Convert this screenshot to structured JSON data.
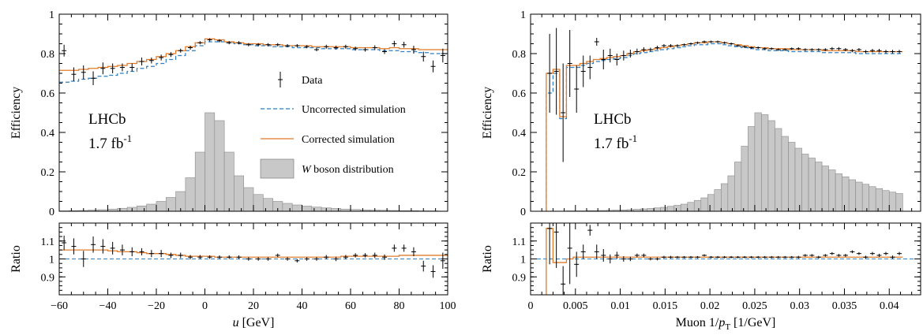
{
  "colors": {
    "data": "#000000",
    "uncorrected": "#2f7fc1",
    "corrected": "#e07b2a",
    "hist_fill": "#c8c8c8",
    "hist_edge": "#8a8a8a",
    "unity_line": "#2f7fc1"
  },
  "legend": {
    "data": "Data",
    "uncorrected": "Uncorrected simulation",
    "corrected": "Corrected simulation",
    "hist_italic": "W",
    "hist_rest": " boson distribution"
  },
  "chart_data": [
    {
      "type": "line",
      "panel": "left",
      "ylabel_top": "Efficiency",
      "ylabel_bottom": "Ratio",
      "xlabel_main": "u",
      "xlabel_unit": " [GeV]",
      "xlim": [
        -60,
        100
      ],
      "ylim_top": [
        0,
        1
      ],
      "ylim_bottom": [
        0.8,
        1.2
      ],
      "xticks": [
        -60,
        -40,
        -20,
        0,
        20,
        40,
        60,
        80,
        100
      ],
      "xtick_labels": [
        "−60",
        "−40",
        "−20",
        "0",
        "20",
        "40",
        "60",
        "80",
        "100"
      ],
      "yticks_top": [
        0,
        0.2,
        0.4,
        0.6,
        0.8,
        1
      ],
      "ytick_labels_top": [
        "0",
        "0.2",
        "0.4",
        "0.6",
        "0.8",
        "1"
      ],
      "yticks_bottom": [
        0.9,
        1,
        1.1
      ],
      "ytick_labels_bottom": [
        "0.9",
        "1",
        "1.1"
      ],
      "annotation_experiment": "LHCb",
      "annotation_lumi": "1.7 fb",
      "annotation_lumi_sup": "-1",
      "bin_edges": [
        -60,
        -56,
        -52,
        -48,
        -44,
        -40,
        -36,
        -32,
        -28,
        -24,
        -20,
        -16,
        -12,
        -8,
        -4,
        0,
        4,
        8,
        12,
        16,
        20,
        24,
        28,
        32,
        36,
        40,
        44,
        48,
        52,
        56,
        60,
        64,
        68,
        72,
        76,
        80,
        84,
        88,
        92,
        96,
        100
      ],
      "data_values": [
        0.815,
        0.695,
        0.705,
        0.675,
        0.725,
        0.725,
        0.73,
        0.73,
        0.76,
        0.765,
        0.78,
        0.795,
        0.815,
        0.83,
        0.855,
        0.87,
        0.865,
        0.855,
        0.855,
        0.845,
        0.845,
        0.845,
        0.845,
        0.84,
        0.84,
        0.835,
        0.82,
        0.835,
        0.83,
        0.835,
        0.825,
        0.82,
        0.83,
        0.81,
        0.85,
        0.845,
        0.82,
        0.785,
        0.735,
        0.79
      ],
      "data_errors": [
        0.03,
        0.035,
        0.035,
        0.035,
        0.03,
        0.025,
        0.02,
        0.02,
        0.02,
        0.015,
        0.015,
        0.012,
        0.01,
        0.01,
        0.008,
        0.008,
        0.008,
        0.008,
        0.008,
        0.008,
        0.008,
        0.008,
        0.008,
        0.008,
        0.008,
        0.008,
        0.008,
        0.01,
        0.01,
        0.01,
        0.01,
        0.01,
        0.012,
        0.012,
        0.015,
        0.015,
        0.02,
        0.025,
        0.03,
        0.035
      ],
      "uncorrected_values": [
        0.655,
        0.66,
        0.67,
        0.675,
        0.685,
        0.69,
        0.7,
        0.71,
        0.725,
        0.735,
        0.75,
        0.77,
        0.79,
        0.815,
        0.84,
        0.86,
        0.86,
        0.855,
        0.85,
        0.845,
        0.84,
        0.84,
        0.835,
        0.835,
        0.83,
        0.83,
        0.83,
        0.825,
        0.825,
        0.825,
        0.82,
        0.82,
        0.82,
        0.815,
        0.815,
        0.81,
        0.81,
        0.805,
        0.8,
        0.8
      ],
      "corrected_values": [
        0.715,
        0.715,
        0.72,
        0.725,
        0.73,
        0.735,
        0.74,
        0.75,
        0.76,
        0.77,
        0.785,
        0.8,
        0.815,
        0.835,
        0.855,
        0.875,
        0.87,
        0.86,
        0.855,
        0.85,
        0.85,
        0.845,
        0.845,
        0.84,
        0.84,
        0.84,
        0.835,
        0.835,
        0.835,
        0.835,
        0.83,
        0.83,
        0.83,
        0.825,
        0.83,
        0.825,
        0.825,
        0.82,
        0.82,
        0.82
      ],
      "hist_values": [
        0.002,
        0.003,
        0.004,
        0.006,
        0.008,
        0.011,
        0.015,
        0.02,
        0.027,
        0.036,
        0.05,
        0.07,
        0.1,
        0.17,
        0.3,
        0.5,
        0.46,
        0.3,
        0.18,
        0.12,
        0.085,
        0.065,
        0.05,
        0.04,
        0.032,
        0.026,
        0.021,
        0.017,
        0.014,
        0.011,
        0.009,
        0.007,
        0.006,
        0.005,
        0.004,
        0.003,
        0.003,
        0.002,
        0.002,
        0.001
      ],
      "ratio_values": [
        1.09,
        1.07,
        1.0,
        1.08,
        1.07,
        1.06,
        1.05,
        1.04,
        1.04,
        1.03,
        1.03,
        1.02,
        1.02,
        1.01,
        1.01,
        1.01,
        1.01,
        1.01,
        1.01,
        1.0,
        1.0,
        1.0,
        1.02,
        1.0,
        0.99,
        1.0,
        1.0,
        1.01,
        1.0,
        1.01,
        1.02,
        1.02,
        1.02,
        1.01,
        1.06,
        1.06,
        1.04,
        0.96,
        0.93,
        0.99
      ],
      "ratio_errors": [
        0.04,
        0.045,
        0.045,
        0.045,
        0.04,
        0.035,
        0.03,
        0.025,
        0.02,
        0.02,
        0.02,
        0.015,
        0.015,
        0.012,
        0.012,
        0.01,
        0.01,
        0.01,
        0.01,
        0.01,
        0.01,
        0.01,
        0.01,
        0.01,
        0.01,
        0.01,
        0.01,
        0.012,
        0.012,
        0.012,
        0.012,
        0.012,
        0.015,
        0.015,
        0.02,
        0.02,
        0.025,
        0.03,
        0.035,
        0.045
      ],
      "ratio_corrected_values": [
        1.05,
        1.05,
        1.05,
        1.05,
        1.05,
        1.045,
        1.04,
        1.04,
        1.035,
        1.03,
        1.03,
        1.025,
        1.02,
        1.015,
        1.015,
        1.015,
        1.01,
        1.01,
        1.01,
        1.01,
        1.01,
        1.01,
        1.01,
        1.01,
        1.01,
        1.01,
        1.01,
        1.01,
        1.01,
        1.015,
        1.015,
        1.015,
        1.015,
        1.015,
        1.015,
        1.02,
        1.02,
        1.02,
        1.02,
        1.02
      ]
    },
    {
      "type": "line",
      "panel": "right",
      "ylabel_top": "Efficiency",
      "ylabel_bottom": "Ratio",
      "xlabel_prefix": "Muon 1/",
      "xlabel_main": "p",
      "xlabel_sub": "T",
      "xlabel_unit": " [1/GeV]",
      "xlim": [
        0,
        0.0435
      ],
      "ylim_top": [
        0,
        1
      ],
      "ylim_bottom": [
        0.8,
        1.2
      ],
      "xticks": [
        0,
        0.005,
        0.01,
        0.015,
        0.02,
        0.025,
        0.03,
        0.035,
        0.04
      ],
      "xtick_labels": [
        "0",
        "0.005",
        "0.01",
        "0.015",
        "0.02",
        "0.025",
        "0.03",
        "0.035",
        "0.04"
      ],
      "yticks_top": [
        0,
        0.2,
        0.4,
        0.6,
        0.8,
        1
      ],
      "ytick_labels_top": [
        "0",
        "0.2",
        "0.4",
        "0.6",
        "0.8",
        "1"
      ],
      "yticks_bottom": [
        0.9,
        1,
        1.1
      ],
      "ytick_labels_bottom": [
        "0.9",
        "1",
        "1.1"
      ],
      "annotation_experiment": "LHCb",
      "annotation_lumi": "1.7 fb",
      "annotation_lumi_sup": "-1",
      "bin_start": 0.00175,
      "bin_width": 0.00075,
      "data_values": [
        0.7,
        0.71,
        0.5,
        0.75,
        0.62,
        0.71,
        0.73,
        0.86,
        0.77,
        0.79,
        0.77,
        0.79,
        0.8,
        0.81,
        0.82,
        0.82,
        0.83,
        0.84,
        0.84,
        0.84,
        0.845,
        0.85,
        0.855,
        0.86,
        0.86,
        0.86,
        0.855,
        0.85,
        0.84,
        0.835,
        0.83,
        0.83,
        0.825,
        0.825,
        0.82,
        0.82,
        0.825,
        0.825,
        0.82,
        0.82,
        0.82,
        0.82,
        0.825,
        0.825,
        0.82,
        0.815,
        0.82,
        0.81,
        0.815,
        0.815,
        0.81,
        0.81,
        0.81
      ],
      "data_errors": [
        0.2,
        0.22,
        0.25,
        0.17,
        0.12,
        0.08,
        0.06,
        0.02,
        0.05,
        0.035,
        0.03,
        0.025,
        0.02,
        0.015,
        0.012,
        0.01,
        0.01,
        0.008,
        0.008,
        0.007,
        0.006,
        0.006,
        0.006,
        0.006,
        0.006,
        0.006,
        0.006,
        0.006,
        0.006,
        0.006,
        0.006,
        0.006,
        0.006,
        0.006,
        0.006,
        0.006,
        0.006,
        0.007,
        0.007,
        0.007,
        0.007,
        0.007,
        0.008,
        0.008,
        0.008,
        0.008,
        0.008,
        0.008,
        0.009,
        0.009,
        0.009,
        0.009,
        0.009
      ],
      "uncorrected_values": [
        0.6,
        0.7,
        0.47,
        0.73,
        0.73,
        0.74,
        0.75,
        0.76,
        0.765,
        0.77,
        0.775,
        0.78,
        0.79,
        0.8,
        0.805,
        0.81,
        0.815,
        0.82,
        0.825,
        0.83,
        0.835,
        0.84,
        0.845,
        0.845,
        0.85,
        0.85,
        0.845,
        0.84,
        0.835,
        0.83,
        0.825,
        0.82,
        0.82,
        0.815,
        0.815,
        0.815,
        0.81,
        0.81,
        0.81,
        0.81,
        0.81,
        0.805,
        0.805,
        0.805,
        0.805,
        0.805,
        0.8,
        0.8,
        0.8,
        0.8,
        0.8,
        0.8,
        0.8
      ],
      "corrected_values": [
        0.7,
        0.72,
        0.48,
        0.74,
        0.74,
        0.75,
        0.76,
        0.77,
        0.775,
        0.78,
        0.785,
        0.79,
        0.8,
        0.81,
        0.815,
        0.82,
        0.825,
        0.83,
        0.835,
        0.84,
        0.845,
        0.85,
        0.855,
        0.855,
        0.86,
        0.86,
        0.855,
        0.85,
        0.845,
        0.84,
        0.835,
        0.83,
        0.83,
        0.825,
        0.825,
        0.825,
        0.82,
        0.82,
        0.82,
        0.82,
        0.82,
        0.815,
        0.815,
        0.815,
        0.815,
        0.815,
        0.81,
        0.81,
        0.81,
        0.81,
        0.81,
        0.81,
        0.81
      ],
      "hist_values": [
        0.001,
        0.001,
        0.001,
        0.002,
        0.002,
        0.002,
        0.003,
        0.003,
        0.004,
        0.005,
        0.006,
        0.007,
        0.008,
        0.01,
        0.012,
        0.014,
        0.017,
        0.02,
        0.025,
        0.03,
        0.036,
        0.045,
        0.055,
        0.068,
        0.085,
        0.11,
        0.14,
        0.18,
        0.25,
        0.33,
        0.43,
        0.5,
        0.49,
        0.46,
        0.42,
        0.38,
        0.35,
        0.32,
        0.29,
        0.27,
        0.25,
        0.23,
        0.21,
        0.19,
        0.175,
        0.16,
        0.148,
        0.137,
        0.125,
        0.115,
        0.105,
        0.097,
        0.09
      ],
      "ratio_values": [
        1.17,
        1.15,
        0.86,
        1.06,
        0.97,
        1.04,
        1.16,
        1.04,
        1.02,
        1.0,
        1.02,
        1.0,
        1.0,
        1.02,
        1.02,
        1.0,
        1.0,
        1.01,
        1.01,
        1.01,
        1.01,
        1.01,
        1.01,
        1.02,
        1.01,
        1.01,
        1.01,
        1.01,
        1.01,
        1.01,
        1.01,
        1.01,
        1.01,
        1.01,
        1.01,
        1.01,
        1.01,
        1.01,
        1.02,
        1.02,
        1.01,
        1.02,
        1.03,
        1.02,
        1.02,
        1.04,
        1.03,
        1.01,
        1.03,
        1.02,
        1.03,
        1.01,
        1.03
      ],
      "ratio_errors": [
        0.2,
        0.2,
        0.1,
        0.2,
        0.07,
        0.04,
        0.03,
        0.04,
        0.035,
        0.025,
        0.02,
        0.015,
        0.012,
        0.01,
        0.01,
        0.008,
        0.008,
        0.007,
        0.007,
        0.006,
        0.006,
        0.006,
        0.006,
        0.006,
        0.006,
        0.006,
        0.006,
        0.006,
        0.006,
        0.006,
        0.006,
        0.006,
        0.006,
        0.006,
        0.006,
        0.006,
        0.006,
        0.007,
        0.007,
        0.007,
        0.007,
        0.007,
        0.008,
        0.008,
        0.008,
        0.008,
        0.008,
        0.008,
        0.009,
        0.009,
        0.009,
        0.009,
        0.009
      ],
      "ratio_corrected_values": [
        1.17,
        0.98,
        0.98,
        1.0,
        1.01,
        1.01,
        1.01,
        1.01,
        1.01,
        1.01,
        1.01,
        1.01,
        1.01,
        1.01,
        1.01,
        1.01,
        1.01,
        1.01,
        1.01,
        1.01,
        1.01,
        1.01,
        1.01,
        1.01,
        1.01,
        1.01,
        1.01,
        1.01,
        1.01,
        1.01,
        1.01,
        1.01,
        1.01,
        1.01,
        1.01,
        1.01,
        1.01,
        1.01,
        1.01,
        1.01,
        1.01,
        1.01,
        1.01,
        1.01,
        1.01,
        1.01,
        1.01,
        1.01,
        1.01,
        1.01,
        1.01,
        1.01,
        1.01
      ]
    }
  ]
}
